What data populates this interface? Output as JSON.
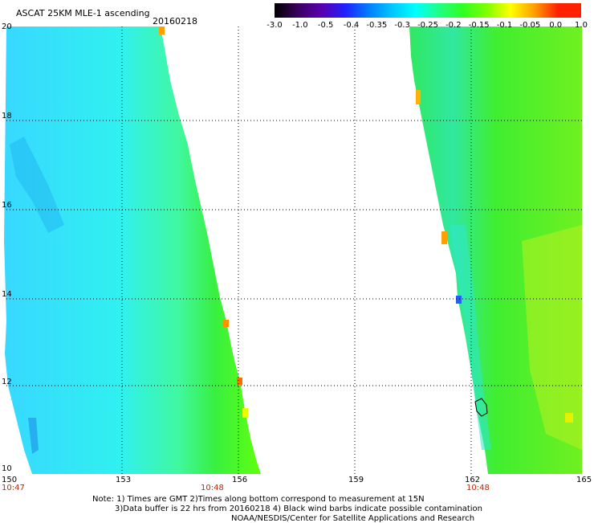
{
  "header": {
    "title": "ASCAT 25KM MLE-1 ascending",
    "date": "20160218"
  },
  "colorbar": {
    "labels": [
      "-3.0",
      "-1.0",
      "-0.5",
      "-0.4",
      "-0.35",
      "-0.3",
      "-0.25",
      "-0.2",
      "-0.15",
      "-0.1",
      "-0.05",
      "0.0",
      "1.0"
    ],
    "colors": [
      "#000000",
      "#3a0060",
      "#5a00b0",
      "#2020ff",
      "#0080ff",
      "#00c8ff",
      "#00ffff",
      "#20ff80",
      "#30ff20",
      "#80ff00",
      "#ffff00",
      "#ffa000",
      "#ff2000"
    ]
  },
  "axes": {
    "x_ticks": [
      "150",
      "153",
      "156",
      "159",
      "162",
      "165"
    ],
    "y_ticks": [
      "20",
      "18",
      "16",
      "14",
      "12",
      "10"
    ],
    "time_labels": [
      "10:47",
      "10:48",
      "10:48"
    ]
  },
  "notes": {
    "line1": "Note: 1) Times are GMT 2)Times along bottom correspond to measurement at 15N",
    "line2": "3)Data buffer is 22 hrs from 20160218 4) Black wind barbs indicate possible contamination",
    "line3": "NOAA/NESDIS/Center for Satellite Applications and Research"
  }
}
